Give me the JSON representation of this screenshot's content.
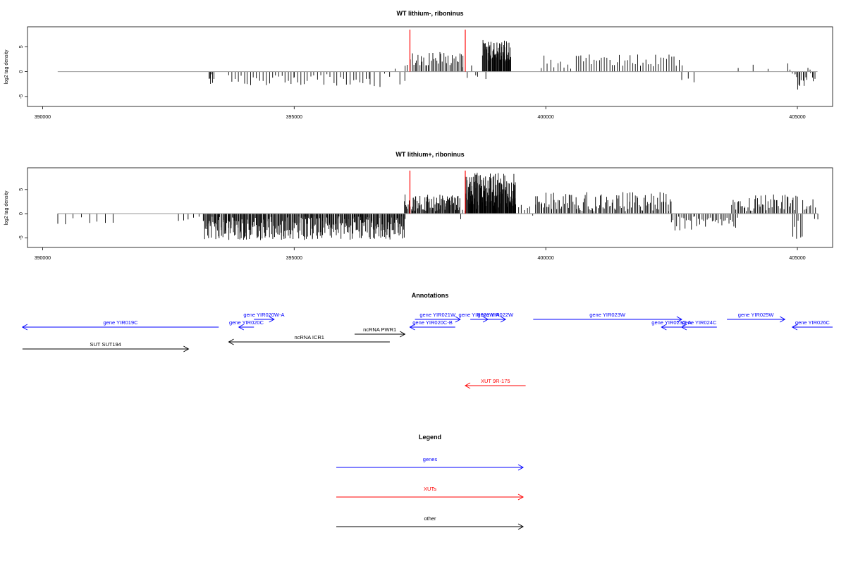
{
  "panels": [
    {
      "title": "WT lithium-, riboninus",
      "ylabel": "log2 tag density",
      "yticks": [
        "-5",
        "0",
        "5"
      ],
      "xticks": [
        "390000",
        "395000",
        "400000",
        "405000"
      ],
      "xlim": [
        389700,
        405700
      ],
      "ylim": [
        -7,
        9
      ],
      "baseline": [
        390300,
        405400
      ],
      "markers": [
        397300,
        398400
      ],
      "regions": [
        [
          [
            393300,
            393400
          ],
          [
            -2.5,
            -0.5
          ],
          6,
          5
        ],
        [
          [
            393700,
            395000
          ],
          [
            -3,
            -0.5
          ],
          22,
          8
        ],
        [
          [
            395000,
            396500
          ],
          [
            -3,
            -0.5
          ],
          24,
          9
        ],
        [
          [
            396500,
            397200
          ],
          [
            -4,
            0.8
          ],
          8,
          11
        ],
        [
          [
            397200,
            397300
          ],
          [
            1,
            3
          ],
          3,
          12
        ],
        [
          [
            397350,
            398350
          ],
          [
            1,
            4
          ],
          36,
          13
        ],
        [
          [
            398350,
            398600
          ],
          [
            -1.5,
            2
          ],
          4,
          14
        ],
        [
          [
            398650,
            398800
          ],
          [
            -1.5,
            -0.5
          ],
          2,
          15
        ],
        [
          [
            398750,
            399300
          ],
          [
            2,
            6.5
          ],
          70,
          16
        ],
        [
          [
            399900,
            400500
          ],
          [
            0.5,
            3.5
          ],
          10,
          17
        ],
        [
          [
            400600,
            402700
          ],
          [
            1,
            3.5
          ],
          42,
          18
        ],
        [
          [
            402700,
            402950
          ],
          [
            -3,
            -1
          ],
          3,
          19
        ],
        [
          [
            403800,
            403850
          ],
          [
            0.5,
            1
          ],
          1,
          20
        ],
        [
          [
            404100,
            404150
          ],
          [
            1,
            2.5
          ],
          1,
          21
        ],
        [
          [
            404400,
            404450
          ],
          [
            0.5,
            1.5
          ],
          1,
          22
        ],
        [
          [
            404800,
            404950
          ],
          [
            -3,
            2.5
          ],
          4,
          23
        ],
        [
          [
            404950,
            405350
          ],
          [
            -4,
            1.5
          ],
          16,
          24
        ]
      ]
    },
    {
      "title": "WT lithium+, riboninus",
      "ylabel": "log2 tag density",
      "yticks": [
        "-5",
        "0",
        "5"
      ],
      "xticks": [
        "390000",
        "395000",
        "400000",
        "405000"
      ],
      "xlim": [
        389700,
        405700
      ],
      "ylim": [
        -7,
        9.5
      ],
      "baseline": [
        390300,
        405400
      ],
      "markers": [
        397300,
        398400
      ],
      "regions": [
        [
          [
            390300,
            391400
          ],
          [
            -2.5,
            -0.5
          ],
          8,
          31
        ],
        [
          [
            392700,
            393200
          ],
          [
            -1.5,
            -0.5
          ],
          6,
          32
        ],
        [
          [
            393200,
            397200
          ],
          [
            -5.5,
            -0.5
          ],
          320,
          33
        ],
        [
          [
            397200,
            398300
          ],
          [
            0.5,
            4
          ],
          90,
          34
        ],
        [
          [
            398300,
            398400
          ],
          [
            -2.5,
            1
          ],
          3,
          35
        ],
        [
          [
            398400,
            399400
          ],
          [
            1,
            8.5
          ],
          160,
          36
        ],
        [
          [
            399400,
            399800
          ],
          [
            -2,
            2
          ],
          8,
          37
        ],
        [
          [
            399800,
            402500
          ],
          [
            0.5,
            4.5
          ],
          110,
          38
        ],
        [
          [
            402500,
            403800
          ],
          [
            -3.5,
            -0.5
          ],
          40,
          39
        ],
        [
          [
            403700,
            405000
          ],
          [
            0.5,
            4
          ],
          50,
          40
        ],
        [
          [
            404900,
            405100
          ],
          [
            -5.5,
            -1
          ],
          6,
          41
        ],
        [
          [
            405100,
            405400
          ],
          [
            -2,
            3
          ],
          10,
          42
        ]
      ]
    }
  ],
  "annotations": {
    "title": "Annotations",
    "items": [
      {
        "label": "gene YIR019C",
        "x": [
          389600,
          393500
        ],
        "dir": "left",
        "row": 1,
        "color": "#0000ff"
      },
      {
        "label": "gene YIR020W-A",
        "x": [
          394200,
          394600
        ],
        "dir": "right",
        "row": 0,
        "color": "#0000ff"
      },
      {
        "label": "gene YIR020C",
        "x": [
          393900,
          394200
        ],
        "dir": "left",
        "row": 1,
        "color": "#0000ff"
      },
      {
        "label": "ncRNA ICR1",
        "x": [
          393700,
          396900
        ],
        "dir": "left",
        "row": 3,
        "color": "#000000"
      },
      {
        "label": "ncRNA PWR1",
        "x": [
          396200,
          397200
        ],
        "dir": "right",
        "row": 2,
        "color": "#000000"
      },
      {
        "label": "SUT SUT194",
        "x": [
          389600,
          392900
        ],
        "dir": "right",
        "row": 4,
        "color": "#000000"
      },
      {
        "label": "gene YIR021W",
        "x": [
          397400,
          398300
        ],
        "dir": "right",
        "row": 0,
        "color": "#0000ff"
      },
      {
        "label": "gene YIR020C-B",
        "x": [
          397300,
          398200
        ],
        "dir": "left",
        "row": 1,
        "color": "#0000ff"
      },
      {
        "label": "gene YIR021W-A",
        "x": [
          398500,
          398850
        ],
        "dir": "right",
        "row": 0,
        "color": "#0000ff"
      },
      {
        "label": "gene YIR022W",
        "x": [
          398800,
          399200
        ],
        "dir": "right",
        "row": 0,
        "color": "#0000ff"
      },
      {
        "label": "gene YIR023W",
        "x": [
          399750,
          402700
        ],
        "dir": "right",
        "row": 0,
        "color": "#0000ff"
      },
      {
        "label": "gene YIR023C-A",
        "x": [
          402300,
          402700
        ],
        "dir": "left",
        "row": 1,
        "color": "#0000ff"
      },
      {
        "label": "gene YIR024C",
        "x": [
          402700,
          403400
        ],
        "dir": "left",
        "row": 1,
        "color": "#0000ff"
      },
      {
        "label": "gene YIR025W",
        "x": [
          403600,
          404750
        ],
        "dir": "right",
        "row": 0,
        "color": "#0000ff"
      },
      {
        "label": "gene YIR026C",
        "x": [
          404900,
          405700
        ],
        "dir": "left",
        "row": 1,
        "color": "#0000ff"
      },
      {
        "label": "XUT 9R-175",
        "x": [
          398400,
          399600
        ],
        "dir": "left",
        "row": 5,
        "color": "#ff0000"
      }
    ]
  },
  "legend": {
    "title": "Legend",
    "items": [
      {
        "label": "genes",
        "color": "#0000ff"
      },
      {
        "label": "XUTs",
        "color": "#ff0000"
      },
      {
        "label": "other",
        "color": "#000000"
      }
    ]
  },
  "colors": {
    "bars": "#000000",
    "baseline": "#999999",
    "markers": "#ff0000"
  }
}
